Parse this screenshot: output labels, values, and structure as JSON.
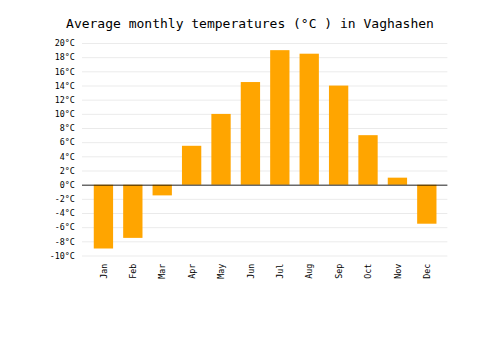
{
  "chart_data": {
    "type": "bar",
    "title": "Average monthly temperatures (°C ) in Vaghashen",
    "categories": [
      "Jan",
      "Feb",
      "Mar",
      "Apr",
      "May",
      "Jun",
      "Jul",
      "Aug",
      "Sep",
      "Oct",
      "Nov",
      "Dec"
    ],
    "values": [
      -9,
      -7.5,
      -1.5,
      5.5,
      10,
      14.5,
      19,
      18.5,
      14,
      7,
      1,
      -5.5
    ],
    "color": "#FFA500",
    "ylim": [
      -10,
      20
    ],
    "yticks": [
      {
        "value": -10,
        "label": "-10°C"
      },
      {
        "value": -8,
        "label": "-8°C"
      },
      {
        "value": -6,
        "label": "-6°C"
      },
      {
        "value": -4,
        "label": "-4°C"
      },
      {
        "value": -2,
        "label": "-2°C"
      },
      {
        "value": 0,
        "label": "0°C"
      },
      {
        "value": 2,
        "label": "2°C"
      },
      {
        "value": 4,
        "label": "4°C"
      },
      {
        "value": 6,
        "label": "6°C"
      },
      {
        "value": 8,
        "label": "8°C"
      },
      {
        "value": 10,
        "label": "10°C"
      },
      {
        "value": 12,
        "label": "12°C"
      },
      {
        "value": 14,
        "label": "14°C"
      },
      {
        "value": 16,
        "label": "16°C"
      },
      {
        "value": 18,
        "label": "18°C"
      },
      {
        "value": 20,
        "label": "20°C"
      }
    ],
    "grid": true
  }
}
